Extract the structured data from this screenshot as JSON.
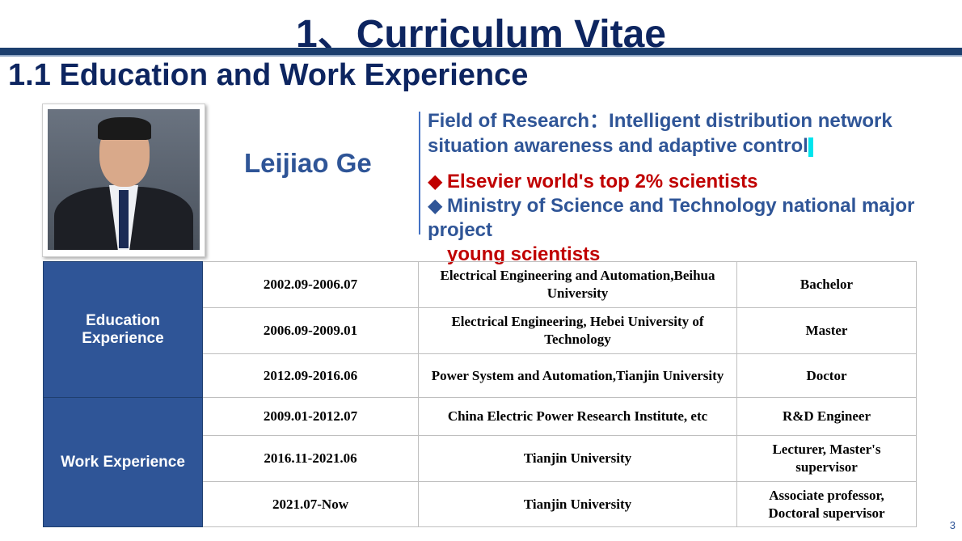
{
  "title": "1、Curriculum Vitae",
  "subtitle": "1.1 Education and Work Experience",
  "profile": {
    "name": "Leijiao Ge",
    "field": "Field of Research：Intelligent distribution network situation awareness and adaptive control",
    "bullet1": "Elsevier world's top 2% scientists",
    "bullet2_a": "Ministry of Science and Technology national major project ",
    "bullet2_b": "young scientists"
  },
  "table": {
    "education_label": "Education Experience",
    "work_label": "Work Experience",
    "rows": [
      {
        "period": "2002.09-2006.07",
        "org": "Electrical Engineering and Automation,Beihua University",
        "role": "Bachelor"
      },
      {
        "period": "2006.09-2009.01",
        "org": "Electrical Engineering, Hebei University of Technology",
        "role": "Master"
      },
      {
        "period": "2012.09-2016.06",
        "org": "Power System and Automation,Tianjin University",
        "role": "Doctor"
      },
      {
        "period": "2009.01-2012.07",
        "org": "China Electric Power Research Institute, etc",
        "role": "R&D Engineer"
      },
      {
        "period": "2016.11-2021.06",
        "org": "Tianjin University",
        "role": "Lecturer, Master's supervisor"
      },
      {
        "period": "2021.07-Now",
        "org": "Tianjin University",
        "role": "Associate professor, Doctoral supervisor"
      }
    ]
  },
  "page_number": "3",
  "colors": {
    "navy": "#0d2560",
    "blue": "#2f5597",
    "red": "#c00000"
  }
}
